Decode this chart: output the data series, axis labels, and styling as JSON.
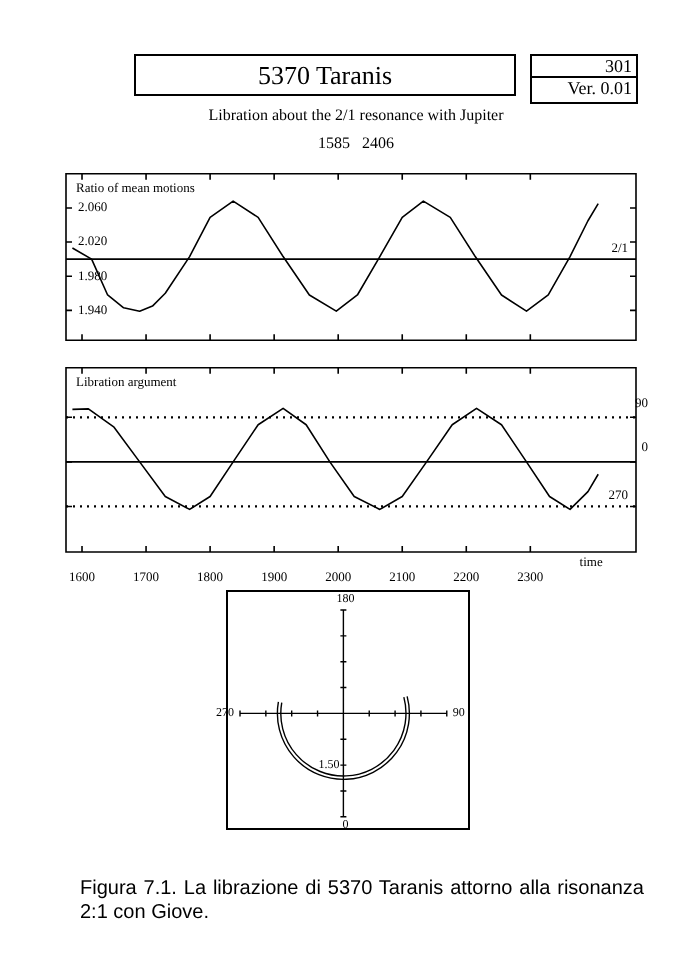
{
  "chart_data": [
    {
      "type": "line",
      "title": "5370 Taranis",
      "subtitle": "Libration about the 2/1 resonance with Jupiter",
      "ylabel": "Ratio of mean motions",
      "annotations": [
        "301",
        "Ver. 0.01",
        "1585   2406",
        "Figura 7.1. La librazione di 5370 Taranis attorno alla risonanza 2:1 con Giove."
      ],
      "x": [
        1585,
        1615,
        1640,
        1665,
        1690,
        1710,
        1730,
        1768,
        1800,
        1836,
        1875,
        1914,
        1955,
        1997,
        2030,
        2065,
        2100,
        2133,
        2175,
        2214,
        2255,
        2294,
        2328,
        2362,
        2390,
        2406
      ],
      "series": [
        {
          "color": "#000000",
          "values": [
            2.013,
            2.0,
            1.958,
            1.943,
            1.939,
            1.945,
            1.96,
            2.003,
            2.049,
            2.068,
            2.049,
            2.003,
            1.958,
            1.939,
            1.958,
            2.003,
            2.049,
            2.068,
            2.049,
            2.003,
            1.958,
            1.939,
            1.958,
            2.003,
            2.045,
            2.065
          ]
        }
      ],
      "xlim": [
        1575,
        2465
      ],
      "xticks": [
        1600,
        1700,
        1800,
        1900,
        2000,
        2100,
        2200,
        2300
      ],
      "ylim": [
        1.905,
        2.1
      ],
      "yticks": [
        {
          "value": 2.06,
          "label": "2.060"
        },
        {
          "value": 2.02,
          "label": "2.020"
        },
        {
          "value": 1.98,
          "label": "1.980"
        },
        {
          "value": 1.94,
          "label": "1.940"
        }
      ],
      "tick_labels": "y",
      "marker": "none",
      "legend": false,
      "grid": false,
      "ref_lines": [
        {
          "axis": "y",
          "value": 2.0,
          "label": "2/1"
        }
      ]
    },
    {
      "type": "line",
      "xlabel": "time",
      "ylabel": "Libration argument",
      "x": [
        1585,
        1610,
        1650,
        1690,
        1730,
        1768,
        1800,
        1836,
        1875,
        1914,
        1950,
        1987,
        2025,
        2065,
        2100,
        2138,
        2178,
        2216,
        2255,
        2294,
        2330,
        2362,
        2390,
        2406
      ],
      "series": [
        {
          "color": "#000000",
          "values": [
            106,
            107,
            70,
            0,
            -70,
            -96,
            -70,
            0,
            75,
            108,
            75,
            0,
            -70,
            -96,
            -70,
            0,
            75,
            108,
            75,
            0,
            -70,
            -96,
            -60,
            -25
          ]
        }
      ],
      "xlim": [
        1575,
        2465
      ],
      "xticks": [
        1600,
        1700,
        1800,
        1900,
        2000,
        2100,
        2200,
        2300
      ],
      "ylim": [
        -182,
        190
      ],
      "yticks": [
        90,
        0,
        {
          "value": -90,
          "label": null
        }
      ],
      "marker": "none",
      "legend": false,
      "grid": false,
      "ref_lines": [
        {
          "axis": "y",
          "value": 90,
          "line_style": "dotted"
        },
        {
          "axis": "y",
          "value": 0
        },
        {
          "axis": "y",
          "value": -90,
          "line_style": "dotted"
        }
      ],
      "annotations": [
        "270"
      ]
    },
    {
      "type": "other",
      "annotations": [
        "180",
        "270",
        "90",
        "0",
        "1.50"
      ]
    }
  ]
}
